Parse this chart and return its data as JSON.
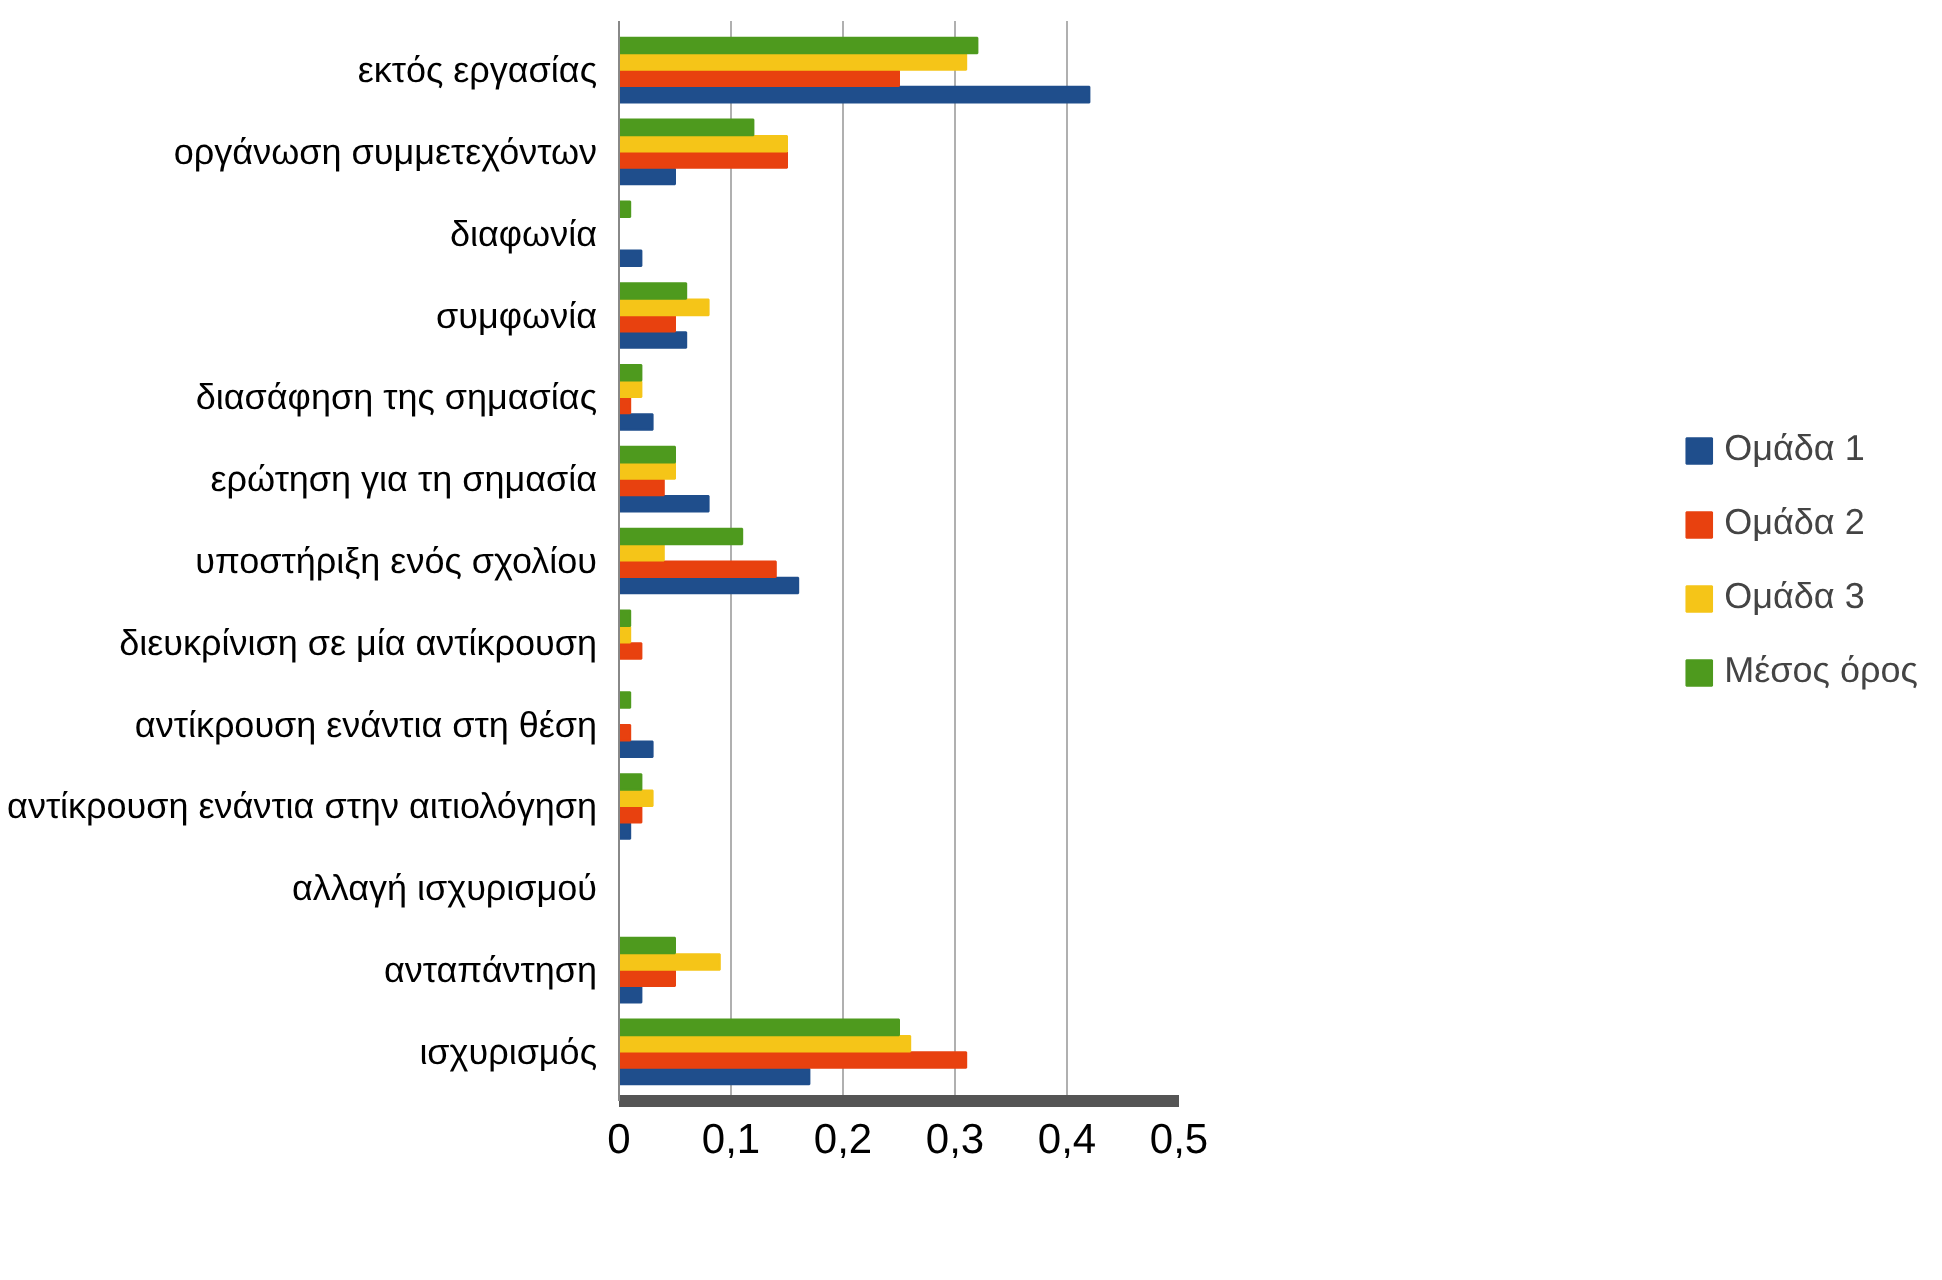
{
  "chart_data": {
    "type": "bar",
    "orientation": "horizontal",
    "categories": [
      "εκτός εργασίας",
      "οργάνωση συμμετεχόντων",
      "διαφωνία",
      "συμφωνία",
      "διασάφηση της σημασίας",
      "ερώτηση για τη σημασία",
      "υποστήριξη ενός σχολίου",
      "διευκρίνιση σε μία αντίκρουση",
      "αντίκρουση ενάντια στη θέση",
      "αντίκρουση ενάντια στην αιτιολόγηση",
      "αλλαγή ισχυρισμού",
      "ανταπάντηση",
      "ισχυρισμός"
    ],
    "series": [
      {
        "name": "Ομάδα 1",
        "color": "#1f4e8c",
        "values": [
          0.42,
          0.05,
          0.02,
          0.06,
          0.03,
          0.08,
          0.16,
          0,
          0.03,
          0.01,
          0,
          0.02,
          0.17
        ]
      },
      {
        "name": "Ομάδα 2",
        "color": "#e8410f",
        "values": [
          0.25,
          0.15,
          0,
          0.05,
          0.01,
          0.04,
          0.14,
          0.02,
          0.01,
          0.02,
          0,
          0.05,
          0.31
        ]
      },
      {
        "name": "Ομάδα 3",
        "color": "#f5c518",
        "values": [
          0.31,
          0.15,
          0,
          0.08,
          0.02,
          0.05,
          0.04,
          0.01,
          0,
          0.03,
          0,
          0.09,
          0.26
        ]
      },
      {
        "name": "Μέσος όρος",
        "color": "#4e9a1e",
        "values": [
          0.32,
          0.12,
          0.01,
          0.06,
          0.02,
          0.05,
          0.11,
          0.01,
          0.01,
          0.02,
          0,
          0.05,
          0.25
        ]
      }
    ],
    "xlim": [
      0,
      0.5
    ],
    "xticks": [
      0,
      {
        "value": 0.1,
        "label": "0,1"
      },
      {
        "value": 0.2,
        "label": "0,2"
      },
      {
        "value": 0.3,
        "label": "0,3"
      },
      {
        "value": 0.4,
        "label": "0,4"
      },
      {
        "value": 0.5,
        "label": "0,5"
      }
    ],
    "grid": "x",
    "legend": "right"
  }
}
